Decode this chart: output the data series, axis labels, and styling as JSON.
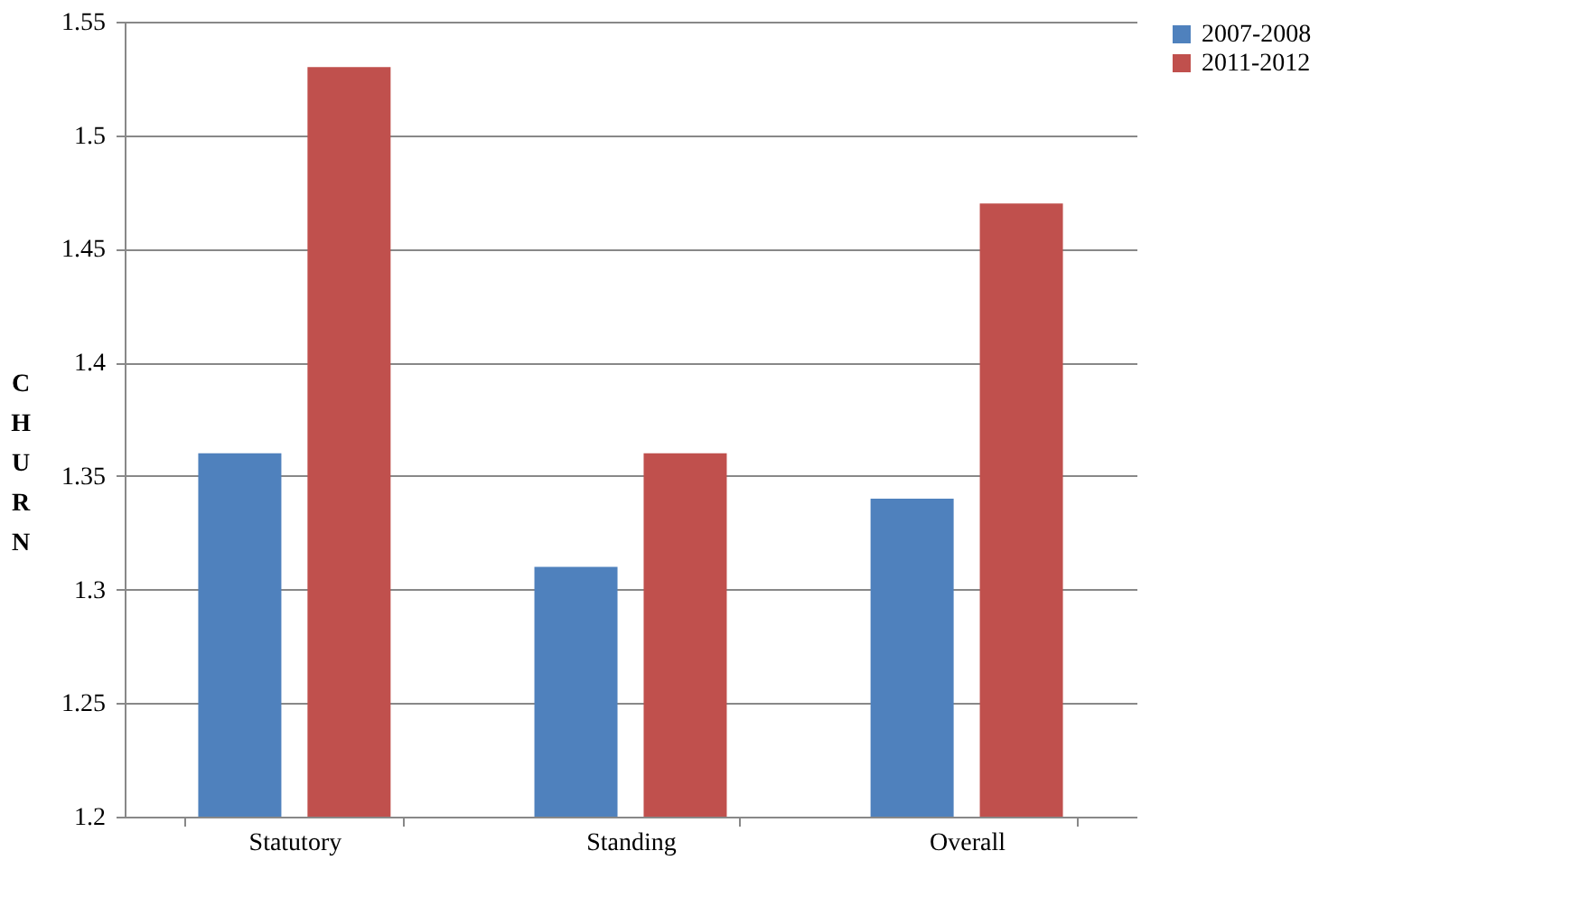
{
  "chart_data": {
    "type": "bar",
    "ylabel": "CHURN",
    "categories": [
      "Statutory",
      "Standing",
      "Overall"
    ],
    "series": [
      {
        "name": "2007-2008",
        "color": "#4f81bd",
        "values": [
          1.36,
          1.31,
          1.34
        ]
      },
      {
        "name": "2011-2012",
        "color": "#c0504d",
        "values": [
          1.53,
          1.36,
          1.47
        ]
      }
    ],
    "ylim": [
      1.2,
      1.55
    ],
    "yticks": [
      1.2,
      1.25,
      1.3,
      1.35,
      1.4,
      1.45,
      1.5,
      1.55
    ],
    "grid": "y",
    "legend": "right"
  }
}
